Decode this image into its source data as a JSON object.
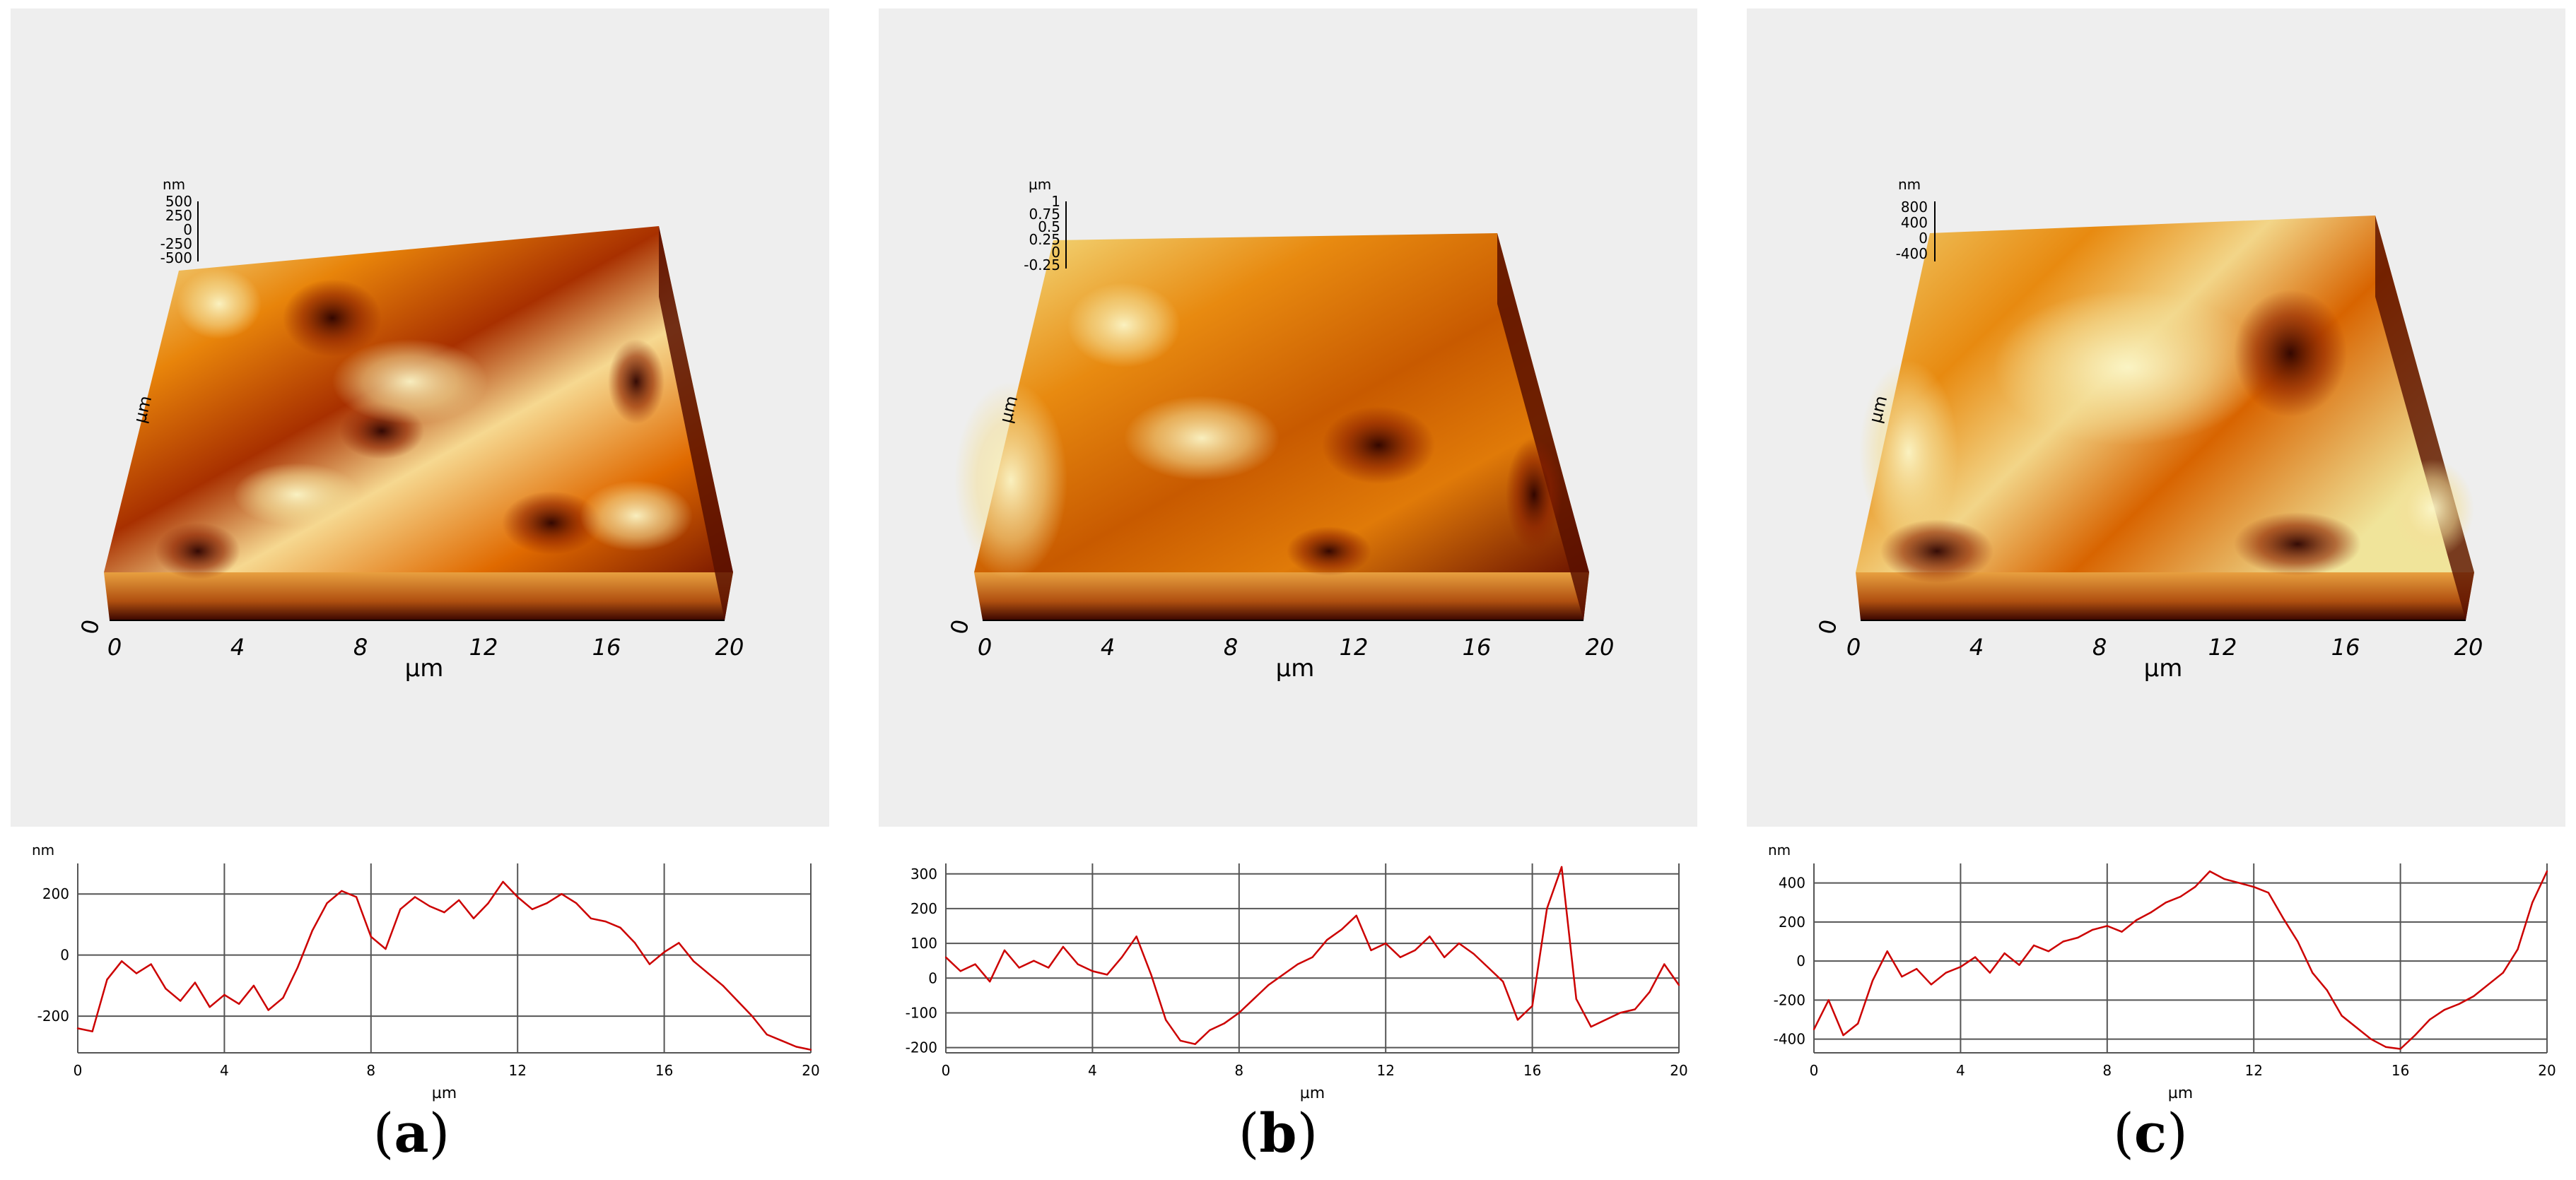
{
  "figure": {
    "panels": [
      {
        "id": "a",
        "caption": "a",
        "afm3d": {
          "x_axis_label": "µm",
          "x_ticks": [
            "0",
            "4",
            "8",
            "12",
            "16",
            "20"
          ],
          "y_origin_label": "0",
          "y_axis_label": "µm",
          "z_unit": "nm",
          "z_ticks": [
            "500",
            "250",
            "0",
            "-250",
            "-500"
          ]
        }
      },
      {
        "id": "b",
        "caption": "b",
        "afm3d": {
          "x_axis_label": "µm",
          "x_ticks": [
            "0",
            "4",
            "8",
            "12",
            "16",
            "20"
          ],
          "y_origin_label": "0",
          "y_axis_label": "µm",
          "z_unit": "µm",
          "z_ticks": [
            "1",
            "0.75",
            "0.5",
            "0.25",
            "0",
            "-0.25"
          ]
        }
      },
      {
        "id": "c",
        "caption": "c",
        "afm3d": {
          "x_axis_label": "µm",
          "x_ticks": [
            "0",
            "4",
            "8",
            "12",
            "16",
            "20"
          ],
          "y_origin_label": "0",
          "y_axis_label": "µm",
          "z_unit": "nm",
          "z_ticks": [
            "800",
            "400",
            "0",
            "-400"
          ]
        }
      }
    ],
    "colors": {
      "panel_bg": "#eeeeee",
      "profile_line": "#cc0000",
      "grid": "#555555",
      "surface_dark": "#3a0500",
      "surface_mid": "#e06a00",
      "surface_light": "#f5f0a8"
    }
  },
  "chart_data": [
    {
      "type": "line",
      "panel": "a",
      "title": "",
      "xlabel": "µm",
      "ylabel": "nm",
      "xlim": [
        0,
        20
      ],
      "ylim": [
        -320,
        300
      ],
      "x_ticks": [
        0,
        4,
        8,
        12,
        16,
        20
      ],
      "y_ticks": [
        -200,
        0,
        200
      ],
      "grid": true,
      "series": [
        {
          "name": "profile",
          "x": [
            0,
            0.4,
            0.8,
            1.2,
            1.6,
            2.0,
            2.4,
            2.8,
            3.2,
            3.6,
            4.0,
            4.4,
            4.8,
            5.2,
            5.6,
            6.0,
            6.4,
            6.8,
            7.2,
            7.6,
            8.0,
            8.4,
            8.8,
            9.2,
            9.6,
            10.0,
            10.4,
            10.8,
            11.2,
            11.6,
            12.0,
            12.4,
            12.8,
            13.2,
            13.6,
            14.0,
            14.4,
            14.8,
            15.2,
            15.6,
            16.0,
            16.4,
            16.8,
            17.2,
            17.6,
            18.0,
            18.4,
            18.8,
            19.2,
            19.6,
            20.0
          ],
          "values": [
            -240,
            -250,
            -80,
            -20,
            -60,
            -30,
            -110,
            -150,
            -90,
            -170,
            -130,
            -160,
            -100,
            -180,
            -140,
            -40,
            80,
            170,
            210,
            190,
            60,
            20,
            150,
            190,
            160,
            140,
            180,
            120,
            170,
            240,
            190,
            150,
            170,
            200,
            170,
            120,
            110,
            90,
            40,
            -30,
            10,
            40,
            -20,
            -60,
            -100,
            -150,
            -200,
            -260,
            -280,
            -300,
            -310
          ]
        }
      ]
    },
    {
      "type": "line",
      "panel": "b",
      "title": "",
      "xlabel": "µm",
      "ylabel": "",
      "xlim": [
        0,
        20
      ],
      "ylim": [
        -215,
        330
      ],
      "x_ticks": [
        0,
        4,
        8,
        12,
        16,
        20
      ],
      "y_ticks": [
        -200,
        -100,
        0,
        100,
        200,
        300
      ],
      "grid": true,
      "series": [
        {
          "name": "profile",
          "x": [
            0,
            0.4,
            0.8,
            1.2,
            1.6,
            2.0,
            2.4,
            2.8,
            3.2,
            3.6,
            4.0,
            4.4,
            4.8,
            5.2,
            5.6,
            6.0,
            6.4,
            6.8,
            7.2,
            7.6,
            8.0,
            8.4,
            8.8,
            9.2,
            9.6,
            10.0,
            10.4,
            10.8,
            11.2,
            11.6,
            12.0,
            12.4,
            12.8,
            13.2,
            13.6,
            14.0,
            14.4,
            14.8,
            15.2,
            15.6,
            16.0,
            16.4,
            16.8,
            17.2,
            17.6,
            18.0,
            18.4,
            18.8,
            19.2,
            19.6,
            20.0
          ],
          "values": [
            60,
            20,
            40,
            -10,
            80,
            30,
            50,
            30,
            90,
            40,
            20,
            10,
            60,
            120,
            10,
            -120,
            -180,
            -190,
            -150,
            -130,
            -100,
            -60,
            -20,
            10,
            40,
            60,
            110,
            140,
            180,
            80,
            100,
            60,
            80,
            120,
            60,
            100,
            70,
            30,
            -10,
            -120,
            -80,
            200,
            320,
            -60,
            -140,
            -120,
            -100,
            -90,
            -40,
            40,
            -20
          ]
        }
      ]
    },
    {
      "type": "line",
      "panel": "c",
      "title": "",
      "xlabel": "µm",
      "ylabel": "nm",
      "xlim": [
        0,
        20
      ],
      "ylim": [
        -470,
        500
      ],
      "x_ticks": [
        0,
        4,
        8,
        12,
        16,
        20
      ],
      "y_ticks": [
        -400,
        -200,
        0,
        200,
        400
      ],
      "grid": true,
      "series": [
        {
          "name": "profile",
          "x": [
            0,
            0.4,
            0.8,
            1.2,
            1.6,
            2.0,
            2.4,
            2.8,
            3.2,
            3.6,
            4.0,
            4.4,
            4.8,
            5.2,
            5.6,
            6.0,
            6.4,
            6.8,
            7.2,
            7.6,
            8.0,
            8.4,
            8.8,
            9.2,
            9.6,
            10.0,
            10.4,
            10.8,
            11.2,
            11.6,
            12.0,
            12.4,
            12.8,
            13.2,
            13.6,
            14.0,
            14.4,
            14.8,
            15.2,
            15.6,
            16.0,
            16.4,
            16.8,
            17.2,
            17.6,
            18.0,
            18.4,
            18.8,
            19.2,
            19.6,
            20.0
          ],
          "values": [
            -350,
            -200,
            -380,
            -320,
            -100,
            50,
            -80,
            -40,
            -120,
            -60,
            -30,
            20,
            -60,
            40,
            -20,
            80,
            50,
            100,
            120,
            160,
            180,
            150,
            210,
            250,
            300,
            330,
            380,
            460,
            420,
            400,
            380,
            350,
            220,
            100,
            -60,
            -150,
            -280,
            -340,
            -400,
            -440,
            -450,
            -380,
            -300,
            -250,
            -220,
            -180,
            -120,
            -60,
            60,
            300,
            460
          ]
        }
      ]
    }
  ]
}
